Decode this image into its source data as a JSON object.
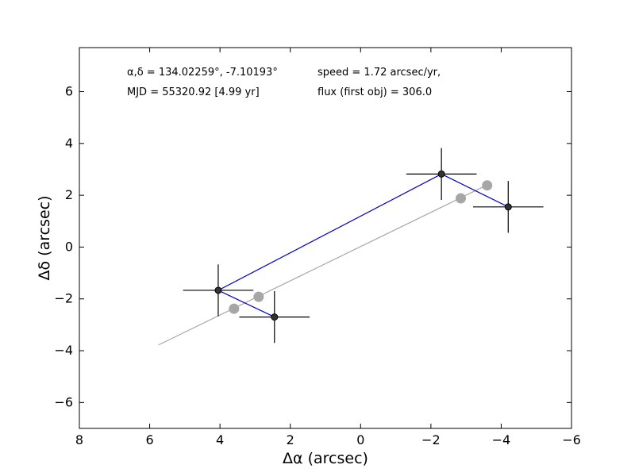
{
  "chart_data": {
    "type": "scatter",
    "title": "",
    "xlabel": "Δα (arcsec)",
    "ylabel": "Δδ (arcsec)",
    "xlim": [
      8,
      -6
    ],
    "ylim": [
      -7,
      7.7
    ],
    "xticks": [
      8,
      6,
      4,
      2,
      0,
      -2,
      -4,
      -6
    ],
    "yticks": [
      -6,
      -4,
      -2,
      0,
      2,
      4,
      6
    ],
    "xtick_labels": [
      "8",
      "6",
      "4",
      "2",
      "0",
      "−2",
      "−4",
      "−6"
    ],
    "ytick_labels": [
      "−6",
      "−4",
      "−2",
      "0",
      "2",
      "4",
      "6"
    ],
    "grid": false,
    "annotations": [
      "α,δ = 134.02259°, -7.10193°",
      "MJD = 55320.92 [4.99 yr]",
      "speed = 1.72 arcsec/yr,",
      "flux (first obj) = 306.0"
    ],
    "observed": {
      "color": "#000000",
      "line_color": "#0000cc",
      "points": [
        {
          "x": 4.05,
          "y": -1.67,
          "xerr": 1.0,
          "yerr": 1.0
        },
        {
          "x": 2.45,
          "y": -2.7,
          "xerr": 1.0,
          "yerr": 1.0
        },
        {
          "x": -2.3,
          "y": 2.82,
          "xerr": 1.0,
          "yerr": 1.0
        },
        {
          "x": -4.2,
          "y": 1.55,
          "xerr": 1.0,
          "yerr": 1.0
        }
      ],
      "path_order": [
        1,
        0,
        2,
        3
      ]
    },
    "model": {
      "color": "#a6a6a6",
      "line": {
        "x": [
          5.75,
          -3.65
        ],
        "y": [
          -3.78,
          2.43
        ]
      },
      "points": [
        {
          "x": 3.6,
          "y": -2.38
        },
        {
          "x": 2.9,
          "y": -1.92
        },
        {
          "x": -2.85,
          "y": 1.88
        },
        {
          "x": -3.6,
          "y": 2.38
        }
      ]
    }
  }
}
